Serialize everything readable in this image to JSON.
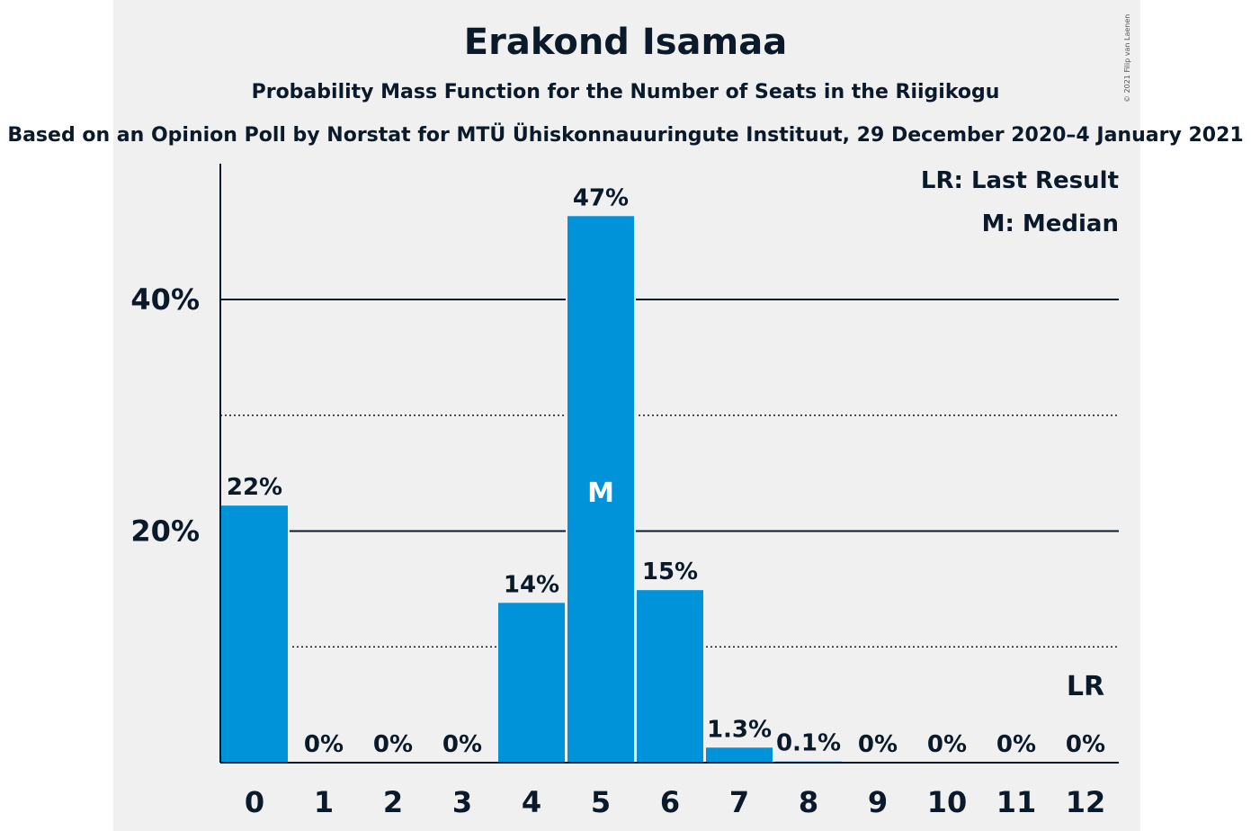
{
  "header": {
    "title": "Erakond Isamaa",
    "subtitle": "Probability Mass Function for the Number of Seats in the Riigikogu",
    "source": "Based on an Opinion Poll by Norstat for MTÜ Ühiskonnauuringute Instituut, 29 December 2020–4 January 2021",
    "copyright": "© 2021 Filip van Laenen"
  },
  "legend": {
    "last_result": "LR: Last Result",
    "median": "M: Median"
  },
  "chart_data": {
    "type": "bar",
    "title": "Erakond Isamaa",
    "categories": [
      "0",
      "1",
      "2",
      "3",
      "4",
      "5",
      "6",
      "7",
      "8",
      "9",
      "10",
      "11",
      "12"
    ],
    "values": [
      22.2,
      0,
      0,
      0,
      13.8,
      47.2,
      14.9,
      1.3,
      0.1,
      0,
      0,
      0,
      0
    ],
    "value_labels": [
      "22%",
      "0%",
      "0%",
      "0%",
      "14%",
      "47%",
      "15%",
      "1.3%",
      "0.1%",
      "0%",
      "0%",
      "0%",
      "0%"
    ],
    "ylim": [
      0,
      52
    ],
    "yticks": [
      {
        "value": 20,
        "label": "20%"
      },
      {
        "value": 40,
        "label": "40%"
      }
    ],
    "minor_gridlines": [
      10,
      30
    ],
    "median_index": 5,
    "median_label": "M",
    "last_result_index": 12,
    "last_result_label": "LR",
    "legend_position": "top-right",
    "bar_color": "#0093d9"
  }
}
